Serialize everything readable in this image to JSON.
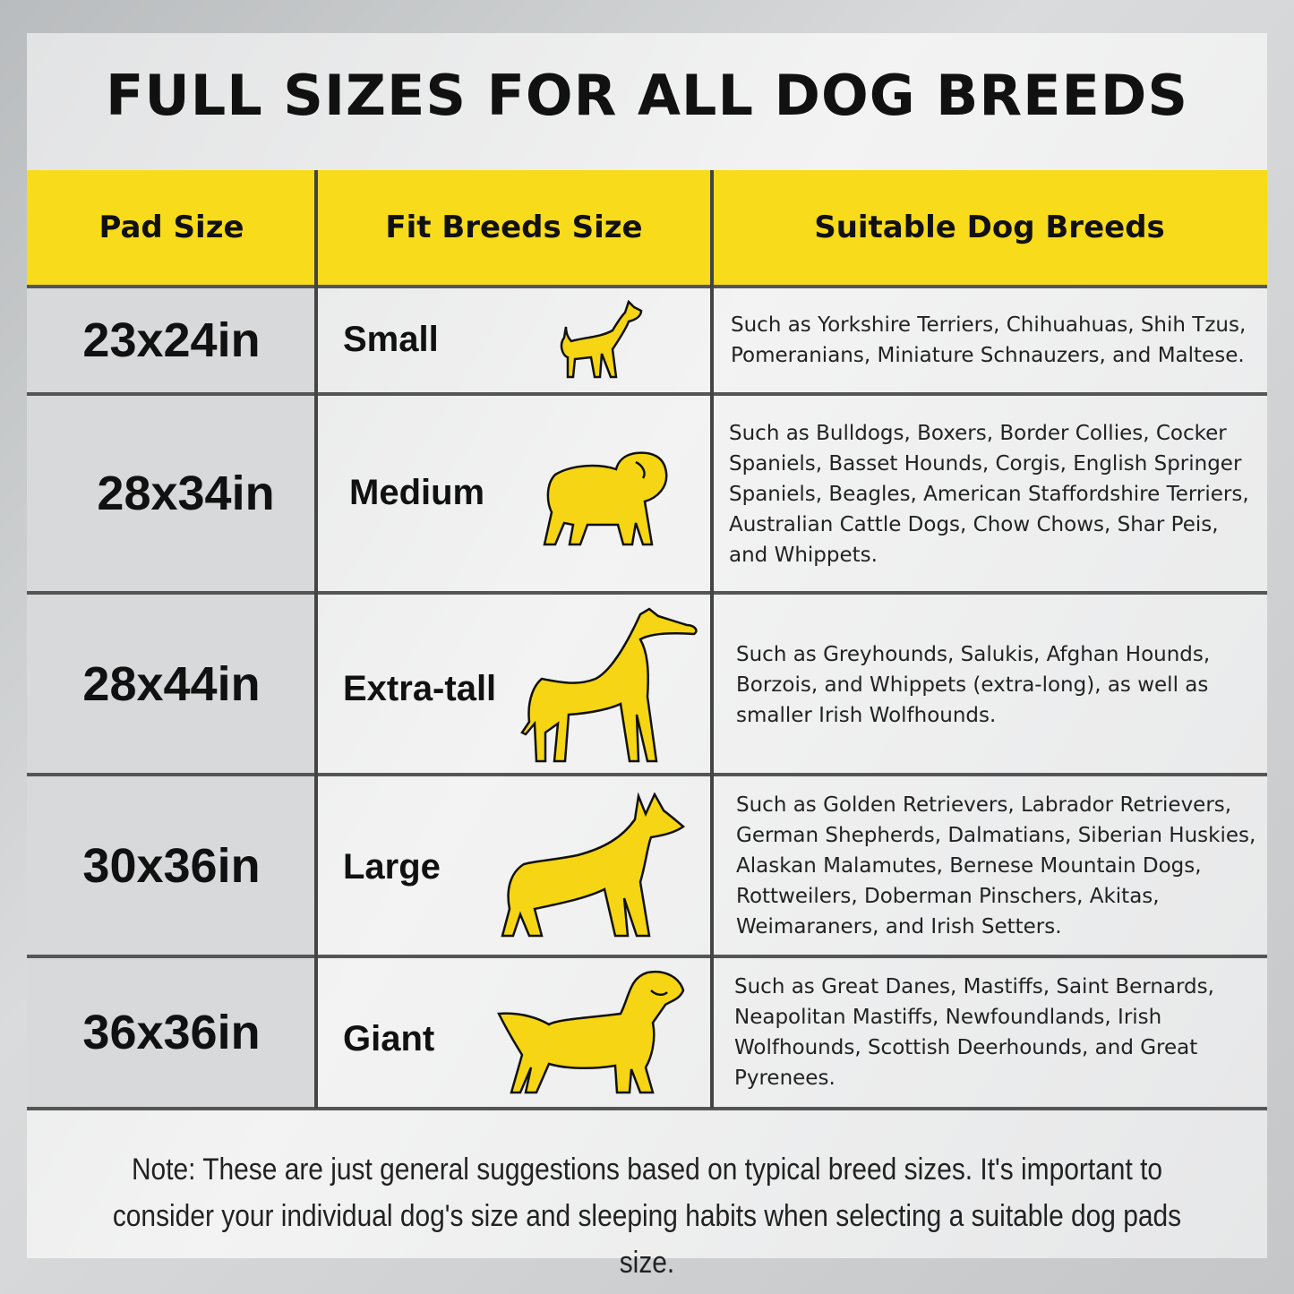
{
  "title": "FULL SIZES FOR ALL DOG BREEDS",
  "headers": [
    "Pad Size",
    "Fit Breeds Size",
    "Suitable Dog Breeds"
  ],
  "colors": {
    "accent": "#f8db1a",
    "dog_fill": "#f5d514"
  },
  "rows": [
    {
      "size": "23x24in",
      "fit": "Small",
      "icon": "chihuahua-icon",
      "breeds": "Such as Yorkshire Terriers, Chihuahuas, Shih Tzus, Pomeranians, Miniature Schnauzers, and Maltese."
    },
    {
      "size": "28x34in",
      "fit": "Medium",
      "icon": "pug-icon",
      "breeds": "Such as Bulldogs, Boxers, Border Collies, Cocker Spaniels, Basset Hounds, Corgis, English Springer Spaniels, Beagles, American Staffordshire Terriers, Australian Cattle Dogs, Chow Chows, Shar Peis, and Whippets."
    },
    {
      "size": "28x44in",
      "fit": "Extra-tall",
      "icon": "greyhound-icon",
      "breeds": "Such as Greyhounds, Salukis, Afghan Hounds, Borzois, and Whippets (extra-long), as well as smaller Irish Wolfhounds."
    },
    {
      "size": "30x36in",
      "fit": "Large",
      "icon": "shepherd-icon",
      "breeds": "Such as Golden Retrievers, Labrador Retrievers, German Shepherds, Dalmatians, Siberian Huskies, Alaskan Malamutes, Bernese Mountain Dogs, Rottweilers, Doberman Pinschers, Akitas, Weimaraners, and Irish Setters."
    },
    {
      "size": "36x36in",
      "fit": "Giant",
      "icon": "retriever-icon",
      "breeds": "Such as Great Danes, Mastiffs, Saint Bernards, Neapolitan Mastiffs, Newfoundlands, Irish  Wolfhounds, Scottish Deerhounds, and Great Pyrenees."
    }
  ],
  "note": "Note: These are just general suggestions based on typical breed sizes. It's important to consider your individual dog's size and sleeping habits when selecting a suitable dog pads size."
}
